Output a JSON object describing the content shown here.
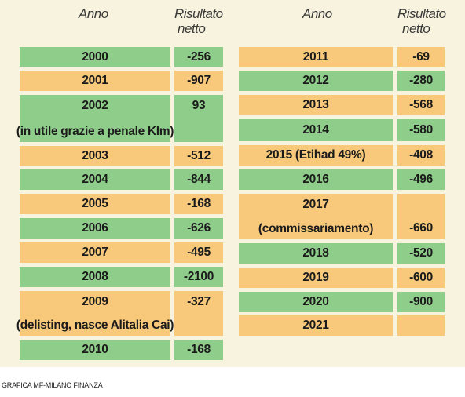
{
  "headers": {
    "left_year": "Anno",
    "left_result_line1": "Risultato",
    "left_result_line2": "netto",
    "right_year": "Anno",
    "right_result_line1": "Risultato",
    "right_result_line2": "netto"
  },
  "left_rows": [
    {
      "year": "2000",
      "result": "-256",
      "color": "green"
    },
    {
      "year": "2001",
      "result": "-907",
      "color": "orange"
    },
    {
      "year": "2002",
      "note": "(in utile grazie a penale Klm)",
      "result": "93",
      "color": "green"
    },
    {
      "year": "2003",
      "result": "-512",
      "color": "orange"
    },
    {
      "year": "2004",
      "result": "-844",
      "color": "green"
    },
    {
      "year": "2005",
      "result": "-168",
      "color": "orange"
    },
    {
      "year": "2006",
      "result": "-626",
      "color": "green"
    },
    {
      "year": "2007",
      "result": "-495",
      "color": "orange"
    },
    {
      "year": "2008",
      "result": "-2100",
      "color": "green"
    },
    {
      "year": "2009",
      "note": "(delisting, nasce Alitalia Cai)",
      "result": "-327",
      "color": "orange"
    },
    {
      "year": "2010",
      "result": "-168",
      "color": "green"
    }
  ],
  "right_rows": [
    {
      "year": "2011",
      "result": "-69",
      "color": "orange"
    },
    {
      "year": "2012",
      "result": "-280",
      "color": "green"
    },
    {
      "year": "2013",
      "result": "-568",
      "color": "orange"
    },
    {
      "year": "2014",
      "result": "-580",
      "color": "green"
    },
    {
      "year": "2015 (Etihad 49%)",
      "result": "-408",
      "color": "orange"
    },
    {
      "year": "2016",
      "result": "-496",
      "color": "green"
    },
    {
      "year": "2017",
      "note": "(commissariamento)",
      "result": "-660",
      "color": "orange"
    },
    {
      "year": "2018",
      "result": "-520",
      "color": "green"
    },
    {
      "year": "2019",
      "result": "-600",
      "color": "orange"
    },
    {
      "year": "2020",
      "result": "-900",
      "color": "green"
    },
    {
      "year": "2021",
      "result": "",
      "color": "orange"
    }
  ],
  "colors": {
    "green": "#8fce8a",
    "orange": "#f8c97b"
  },
  "source": "GRAFICA MF-MILANO FINANZA"
}
